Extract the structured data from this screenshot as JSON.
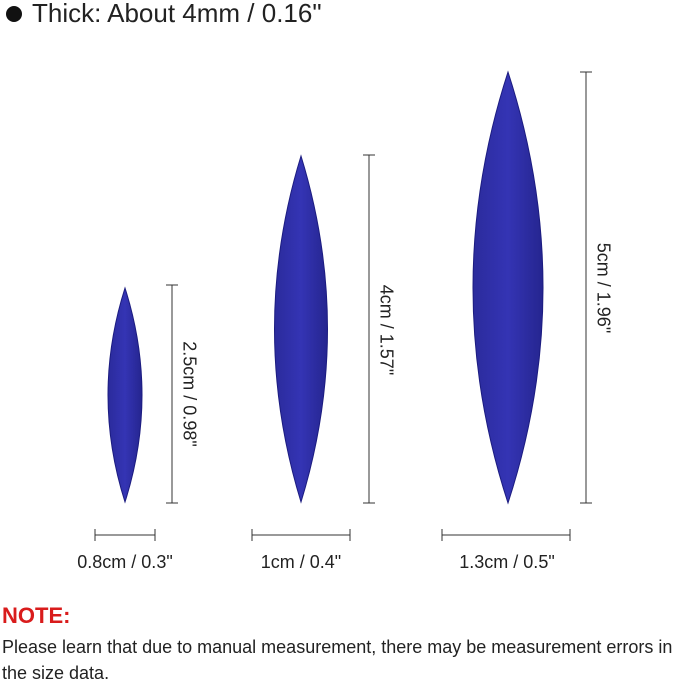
{
  "header": {
    "text": "Thick: About 4mm / 0.16\""
  },
  "items": [
    {
      "height_label": "2.5cm / 0.98\"",
      "width_label": "0.8cm / 0.3\""
    },
    {
      "height_label": "4cm / 1.57\"",
      "width_label": "1cm / 0.4\""
    },
    {
      "height_label": "5cm / 1.96\"",
      "width_label": "1.3cm / 0.5\""
    }
  ],
  "note": {
    "title": "NOTE:",
    "body": "Please learn that due to manual measurement, there may be measurement errors in the size data."
  }
}
